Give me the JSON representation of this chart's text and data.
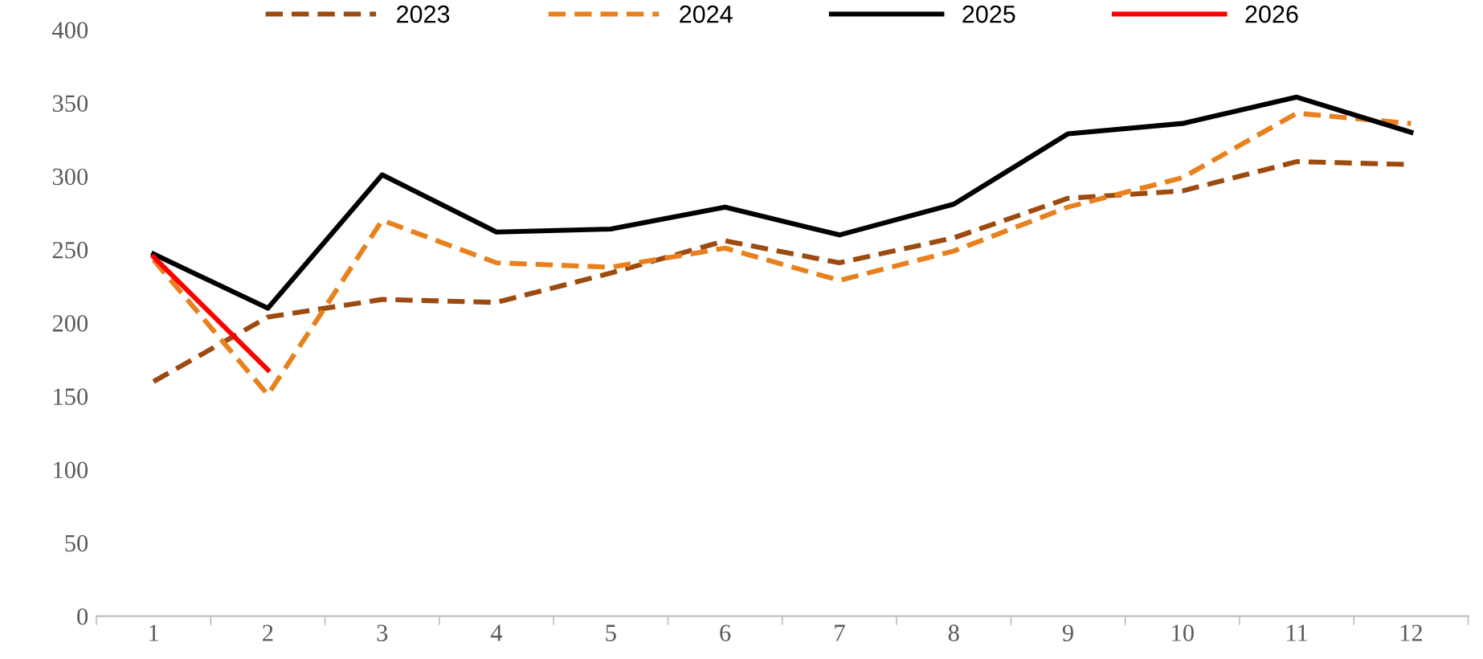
{
  "chart_data": {
    "type": "line",
    "categories": [
      "1",
      "2",
      "3",
      "4",
      "5",
      "6",
      "7",
      "8",
      "9",
      "10",
      "11",
      "12"
    ],
    "series": [
      {
        "name": "2023",
        "color": "#9c4a10",
        "line_style": "dashed",
        "values": [
          160,
          204,
          216,
          214,
          234,
          256,
          241,
          258,
          285,
          290,
          310,
          308
        ]
      },
      {
        "name": "2024",
        "color": "#e8801e",
        "line_style": "dashed",
        "values": [
          243,
          151,
          270,
          241,
          238,
          251,
          229,
          249,
          279,
          299,
          343,
          336
        ]
      },
      {
        "name": "2025",
        "color": "#000000",
        "line_style": "solid",
        "values": [
          247,
          210,
          301,
          262,
          264,
          279,
          260,
          281,
          329,
          336,
          354,
          330
        ]
      },
      {
        "name": "2026",
        "color": "#ff0000",
        "line_style": "solid",
        "values": [
          245,
          168,
          null,
          null,
          null,
          null,
          null,
          null,
          null,
          null,
          null,
          null
        ]
      }
    ],
    "ylim": [
      0,
      400
    ],
    "yticks": [
      0,
      50,
      100,
      150,
      200,
      250,
      300,
      350,
      400
    ],
    "grid": false,
    "legend": "top",
    "marker": "none"
  }
}
